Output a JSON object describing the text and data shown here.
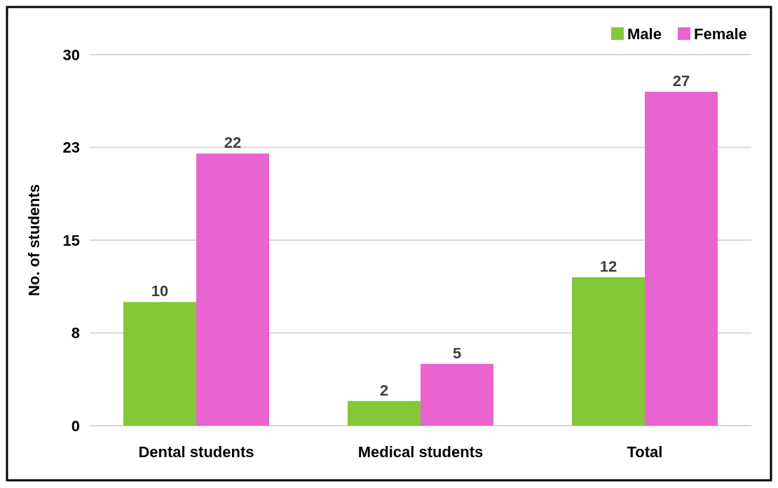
{
  "chart_data": {
    "type": "bar",
    "ylabel": "No. of students",
    "categories": [
      "Dental students",
      "Medical students",
      "Total"
    ],
    "series": [
      {
        "name": "Male",
        "color": "#82c837",
        "values": [
          10,
          2,
          12
        ]
      },
      {
        "name": "Female",
        "color": "#e963d1",
        "values": [
          22,
          5,
          27
        ]
      }
    ],
    "ylim": [
      0,
      30
    ],
    "yticks": [
      0,
      {
        "value": 7.5,
        "label": "8"
      },
      15,
      {
        "value": 22.5,
        "label": "23"
      },
      30
    ],
    "grid": "y",
    "legend": "top right",
    "data_labels": true
  }
}
